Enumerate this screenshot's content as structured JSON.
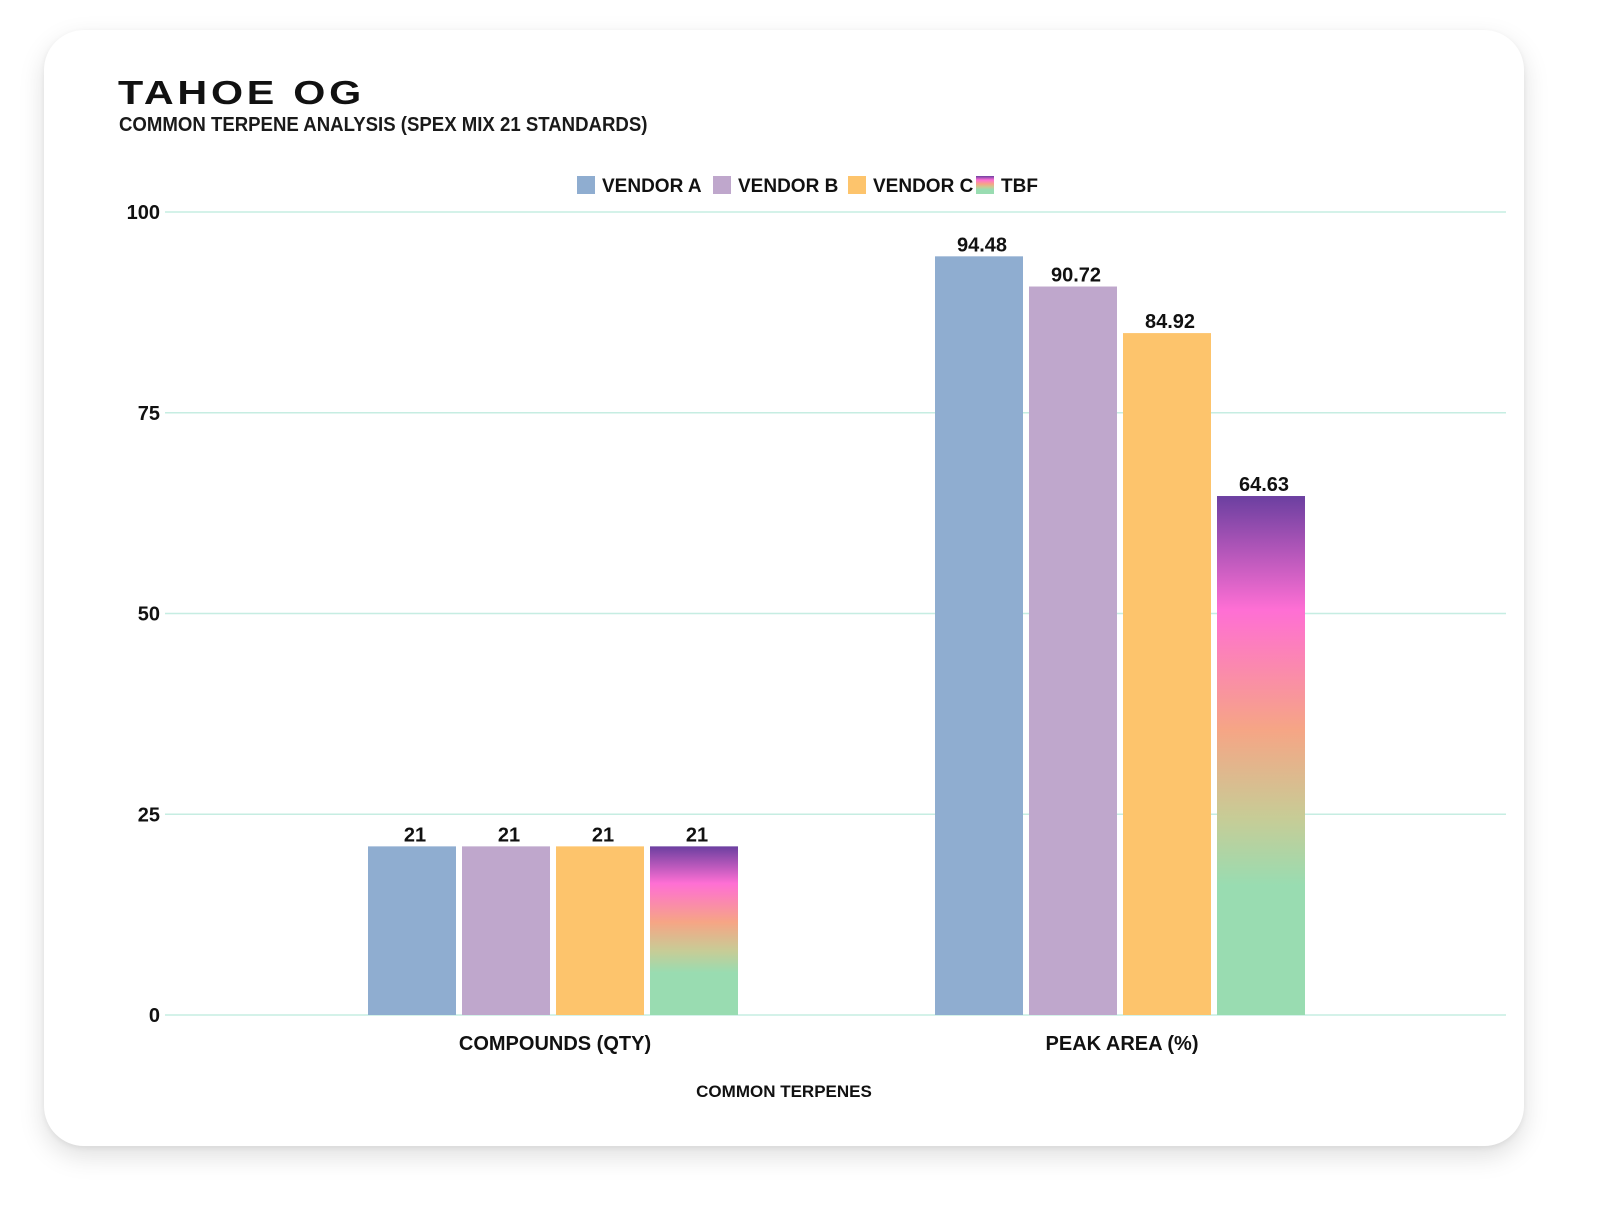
{
  "header": {
    "title": "TAHOE OG",
    "subtitle": "COMMON TERPENE ANALYSIS (SPEX MIX 21 STANDARDS)"
  },
  "colors": {
    "vendor_a": "#8fadd0",
    "vendor_b": "#bfa7cc",
    "vendor_c": "#fdc46c",
    "gridline": "#c6ede2",
    "tbf_gradient": [
      "#6b3fa0",
      "#ff6fd4",
      "#f6a585",
      "#99dcb1"
    ]
  },
  "chart_data": {
    "type": "bar",
    "categories": [
      "COMPOUNDS (QTY)",
      "PEAK AREA (%)"
    ],
    "series": [
      {
        "name": "VENDOR A",
        "values": [
          21,
          94.48
        ]
      },
      {
        "name": "VENDOR B",
        "values": [
          21,
          90.72
        ]
      },
      {
        "name": "VENDOR C",
        "values": [
          21,
          84.92
        ]
      },
      {
        "name": "TBF",
        "values": [
          21,
          64.63
        ]
      }
    ],
    "xlabel": "COMMON TERPENES",
    "ylabel": "",
    "ylim": [
      0,
      100
    ],
    "yticks": [
      0,
      25,
      50,
      75,
      100
    ],
    "legend_position": "top-center",
    "grid": true
  }
}
